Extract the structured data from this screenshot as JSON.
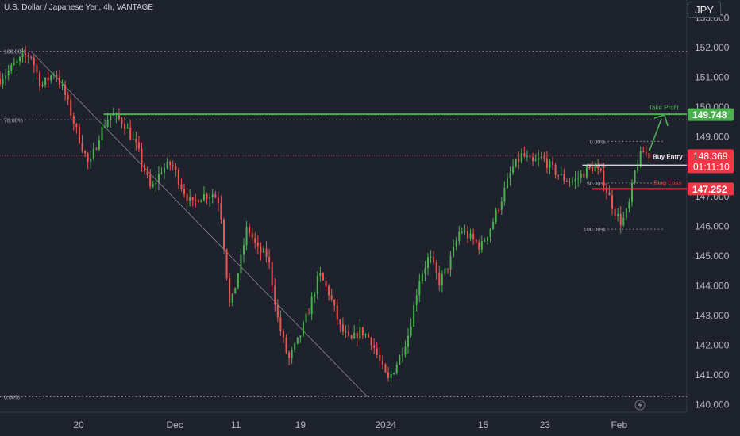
{
  "header": {
    "title": "U.S. Dollar / Japanese Yen, 4h, VANTAGE",
    "currency": "JPY"
  },
  "colors": {
    "background": "#1e222d",
    "up_candle": "#26a69a",
    "green_candle": "#4caf50",
    "down_candle": "#ef5350",
    "take_profit": "#4caf50",
    "stop_loss": "#f23645",
    "grid_text": "#b2b5be"
  },
  "chart_data": {
    "type": "candlestick",
    "title": "U.S. Dollar / Japanese Yen, 4h, VANTAGE",
    "y_axis": {
      "min": 139.75,
      "max": 153.6,
      "ticks": [
        140.0,
        141.0,
        142.0,
        143.0,
        144.0,
        145.0,
        146.0,
        147.0,
        148.0,
        149.0,
        150.0,
        151.0,
        152.0,
        153.0
      ],
      "tick_labels": [
        "140.000",
        "141.000",
        "142.000",
        "143.000",
        "144.000",
        "145.000",
        "146.000",
        "147.000",
        "148.000",
        "149.000",
        "150.000",
        "151.000",
        "152.000",
        "153.000"
      ]
    },
    "x_axis": {
      "labels": [
        "20",
        "Dec",
        "11",
        "19",
        "2024",
        "15",
        "23",
        "Feb"
      ],
      "label_positions": [
        0.1145,
        0.2545,
        0.3435,
        0.4375,
        0.5615,
        0.7035,
        0.7935,
        0.9015
      ]
    },
    "price_path": [
      [
        0.0,
        150.95
      ],
      [
        0.035,
        151.7
      ],
      [
        0.045,
        151.75
      ],
      [
        0.06,
        150.7
      ],
      [
        0.08,
        151.2
      ],
      [
        0.095,
        150.4
      ],
      [
        0.11,
        149.3
      ],
      [
        0.13,
        148.0
      ],
      [
        0.145,
        149.1
      ],
      [
        0.16,
        149.75
      ],
      [
        0.18,
        149.5
      ],
      [
        0.2,
        148.6
      ],
      [
        0.22,
        147.2
      ],
      [
        0.235,
        147.9
      ],
      [
        0.25,
        148.1
      ],
      [
        0.265,
        147.3
      ],
      [
        0.28,
        146.7
      ],
      [
        0.29,
        147.0
      ],
      [
        0.31,
        147.1
      ],
      [
        0.32,
        146.8
      ],
      [
        0.335,
        143.2
      ],
      [
        0.35,
        144.8
      ],
      [
        0.36,
        146.0
      ],
      [
        0.375,
        145.2
      ],
      [
        0.39,
        145.0
      ],
      [
        0.405,
        142.8
      ],
      [
        0.42,
        141.5
      ],
      [
        0.435,
        142.2
      ],
      [
        0.45,
        143.2
      ],
      [
        0.465,
        144.4
      ],
      [
        0.48,
        143.7
      ],
      [
        0.495,
        142.6
      ],
      [
        0.51,
        142.1
      ],
      [
        0.525,
        142.5
      ],
      [
        0.54,
        142.2
      ],
      [
        0.555,
        141.3
      ],
      [
        0.565,
        140.8
      ],
      [
        0.58,
        141.5
      ],
      [
        0.595,
        142.4
      ],
      [
        0.61,
        144.2
      ],
      [
        0.625,
        145.0
      ],
      [
        0.64,
        144.1
      ],
      [
        0.655,
        144.8
      ],
      [
        0.67,
        145.9
      ],
      [
        0.685,
        145.6
      ],
      [
        0.7,
        145.3
      ],
      [
        0.715,
        146.0
      ],
      [
        0.73,
        146.9
      ],
      [
        0.745,
        147.9
      ],
      [
        0.76,
        148.4
      ],
      [
        0.775,
        148.1
      ],
      [
        0.79,
        148.3
      ],
      [
        0.805,
        147.9
      ],
      [
        0.82,
        147.6
      ],
      [
        0.835,
        147.5
      ],
      [
        0.85,
        147.8
      ],
      [
        0.865,
        148.0
      ],
      [
        0.875,
        147.7
      ],
      [
        0.885,
        147.1
      ],
      [
        0.895,
        146.5
      ],
      [
        0.905,
        146.1
      ],
      [
        0.915,
        146.6
      ],
      [
        0.925,
        147.9
      ],
      [
        0.935,
        148.5
      ],
      [
        0.945,
        148.4
      ]
    ],
    "fibonacci_major": [
      {
        "label": "100.00%",
        "value": 151.88
      },
      {
        "label": "78.60%",
        "value": 149.57
      },
      {
        "label": "0.00%",
        "value": 140.27
      }
    ],
    "fibonacci_minor": [
      {
        "label": "0.00%",
        "value": 148.85
      },
      {
        "label": "23.60%",
        "value": 148.05
      },
      {
        "label": "50.00%",
        "value": 147.45
      },
      {
        "label": "100.00%",
        "value": 145.9
      }
    ],
    "levels": {
      "take_profit": {
        "label": "Take Profit",
        "value": 149.748,
        "value_label": "149.748"
      },
      "buy_entry": {
        "label": "Buy Entry",
        "value": 148.369,
        "value_label": "148.369",
        "countdown": "01:11:10"
      },
      "stop_loss": {
        "label": "Stop Loss",
        "value": 147.252,
        "value_label": "147.252"
      }
    }
  }
}
